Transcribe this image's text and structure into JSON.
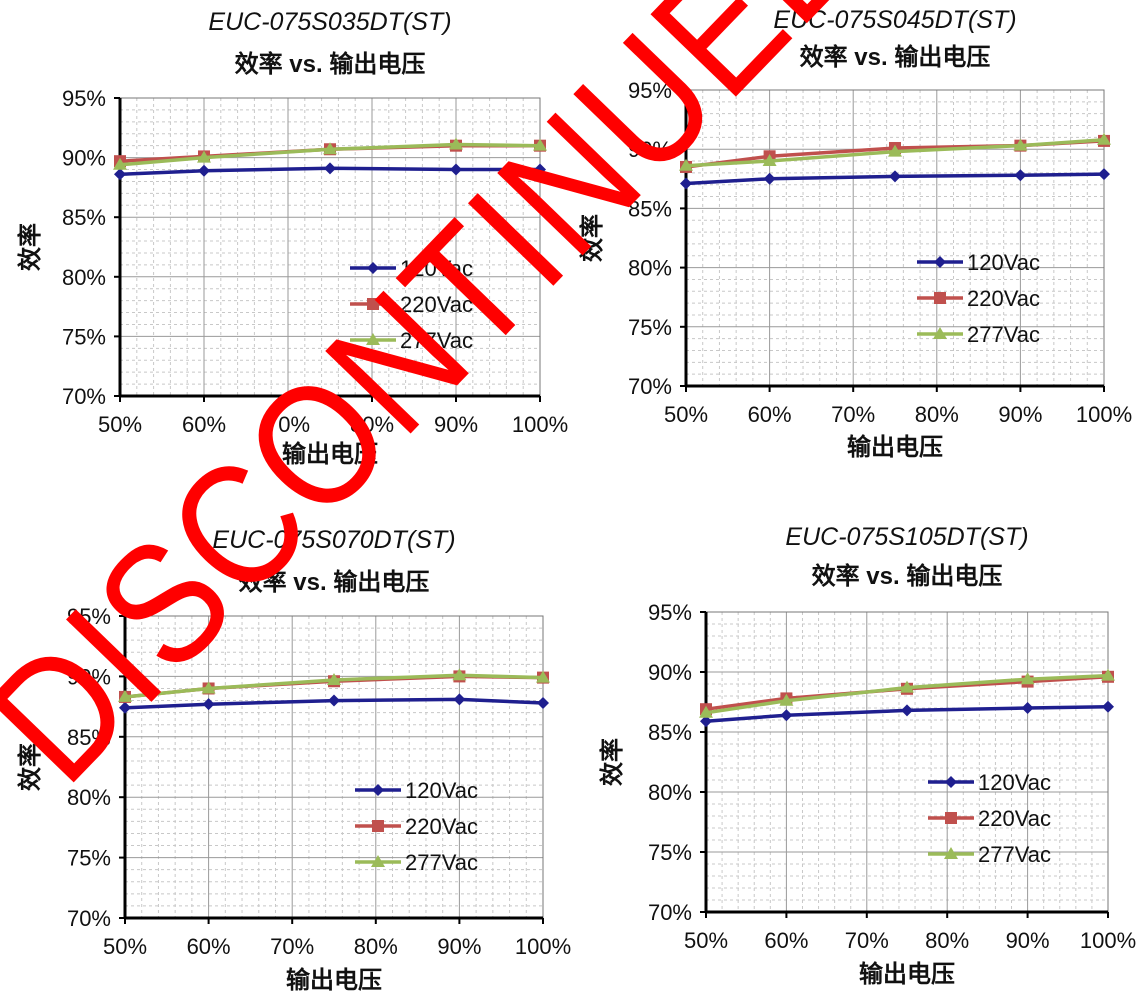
{
  "watermark": {
    "text": "DISCONTINUED",
    "color": "#ff0000"
  },
  "colors": {
    "120Vac": "#1f1f8f",
    "220Vac": "#c0504d",
    "277Vac": "#9bbb59"
  },
  "chart_data": [
    {
      "type": "line",
      "title": "EUC-075S035DT(ST)",
      "subtitle": "效率 vs. 输出电压",
      "xlabel": "输出电压",
      "ylabel": "效率",
      "categories": [
        "50%",
        "60%",
        "70%",
        "80%",
        "90%",
        "100%"
      ],
      "x": [
        50,
        60,
        75,
        90,
        100
      ],
      "ylim": [
        70,
        95
      ],
      "y_ticks": [
        "70%",
        "75%",
        "80%",
        "85%",
        "90%",
        "95%"
      ],
      "grid": true,
      "legend": "bottom-right",
      "series": [
        {
          "name": "120Vac",
          "marker": "diamond",
          "values": [
            88.6,
            88.9,
            89.1,
            89.0,
            89.0
          ]
        },
        {
          "name": "220Vac",
          "marker": "square",
          "values": [
            89.7,
            90.1,
            90.7,
            91.0,
            91.0
          ]
        },
        {
          "name": "277Vac",
          "marker": "triangle",
          "values": [
            89.4,
            90.0,
            90.7,
            91.1,
            91.0
          ]
        }
      ]
    },
    {
      "type": "line",
      "title": "EUC-075S045DT(ST)",
      "subtitle": "效率 vs. 输出电压",
      "xlabel": "输出电压",
      "ylabel": "效率",
      "categories": [
        "50%",
        "60%",
        "70%",
        "80%",
        "90%",
        "100%"
      ],
      "x": [
        50,
        60,
        75,
        90,
        100
      ],
      "ylim": [
        70,
        95
      ],
      "y_ticks": [
        "70%",
        "75%",
        "80%",
        "85%",
        "90%",
        "95%"
      ],
      "grid": true,
      "legend": "bottom-right",
      "series": [
        {
          "name": "120Vac",
          "marker": "diamond",
          "values": [
            87.1,
            87.5,
            87.7,
            87.8,
            87.9
          ]
        },
        {
          "name": "220Vac",
          "marker": "square",
          "values": [
            88.5,
            89.4,
            90.1,
            90.3,
            90.7
          ]
        },
        {
          "name": "277Vac",
          "marker": "triangle",
          "values": [
            88.6,
            89.0,
            89.8,
            90.3,
            90.8
          ]
        }
      ]
    },
    {
      "type": "line",
      "title": "EUC-075S070DT(ST)",
      "subtitle": "效率 vs. 输出电压",
      "xlabel": "输出电压",
      "ylabel": "效率",
      "categories": [
        "50%",
        "60%",
        "70%",
        "80%",
        "90%",
        "100%"
      ],
      "x": [
        50,
        60,
        75,
        90,
        100
      ],
      "ylim": [
        70,
        95
      ],
      "y_ticks": [
        "70%",
        "75%",
        "80%",
        "85%",
        "90%",
        "95%"
      ],
      "grid": true,
      "legend": "bottom-right",
      "series": [
        {
          "name": "120Vac",
          "marker": "diamond",
          "values": [
            87.4,
            87.7,
            88.0,
            88.1,
            87.8
          ]
        },
        {
          "name": "220Vac",
          "marker": "square",
          "values": [
            88.3,
            89.0,
            89.6,
            90.0,
            89.9
          ]
        },
        {
          "name": "277Vac",
          "marker": "triangle",
          "values": [
            88.3,
            89.0,
            89.7,
            90.1,
            89.9
          ]
        }
      ]
    },
    {
      "type": "line",
      "title": "EUC-075S105DT(ST)",
      "subtitle": "效率 vs. 输出电压",
      "xlabel": "输出电压",
      "ylabel": "效率",
      "categories": [
        "50%",
        "60%",
        "70%",
        "80%",
        "90%",
        "100%"
      ],
      "x": [
        50,
        60,
        75,
        90,
        100
      ],
      "ylim": [
        70,
        95
      ],
      "y_ticks": [
        "70%",
        "75%",
        "80%",
        "85%",
        "90%",
        "95%"
      ],
      "grid": true,
      "legend": "bottom-right",
      "series": [
        {
          "name": "120Vac",
          "marker": "diamond",
          "values": [
            85.9,
            86.4,
            86.8,
            87.0,
            87.1
          ]
        },
        {
          "name": "220Vac",
          "marker": "square",
          "values": [
            86.9,
            87.8,
            88.6,
            89.2,
            89.6
          ]
        },
        {
          "name": "277Vac",
          "marker": "triangle",
          "values": [
            86.6,
            87.6,
            88.7,
            89.4,
            89.7
          ]
        }
      ]
    }
  ]
}
